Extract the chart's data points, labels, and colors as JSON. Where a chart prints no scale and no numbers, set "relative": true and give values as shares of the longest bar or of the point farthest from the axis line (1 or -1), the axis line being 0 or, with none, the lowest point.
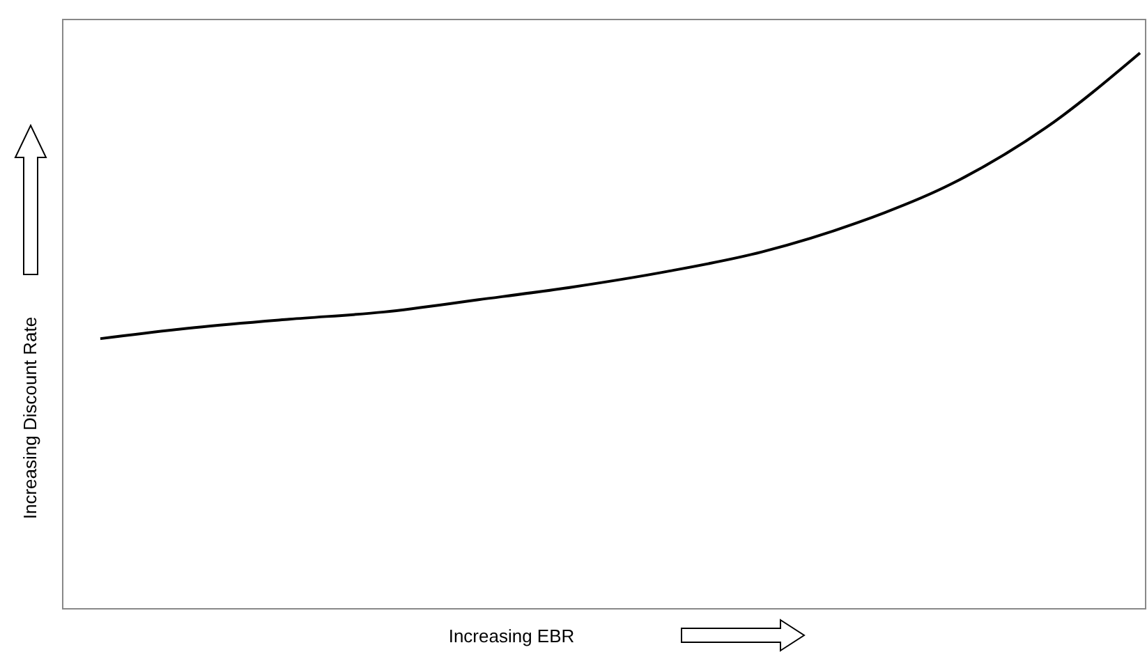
{
  "chart_data": {
    "type": "line",
    "relative": true,
    "xlabel": "Increasing EBR",
    "ylabel": "Increasing Discount Rate",
    "categories": [
      null,
      null,
      null,
      null,
      null,
      null,
      null,
      null,
      null,
      null,
      null,
      null
    ],
    "series": [
      {
        "color": "#000000",
        "values": [
          0.486,
          0.506,
          0.521,
          0.534,
          0.556,
          0.579,
          0.607,
          0.642,
          0.694,
          0.764,
          0.865,
          1
        ]
      }
    ],
    "marker": "none",
    "line_style": "solid"
  }
}
